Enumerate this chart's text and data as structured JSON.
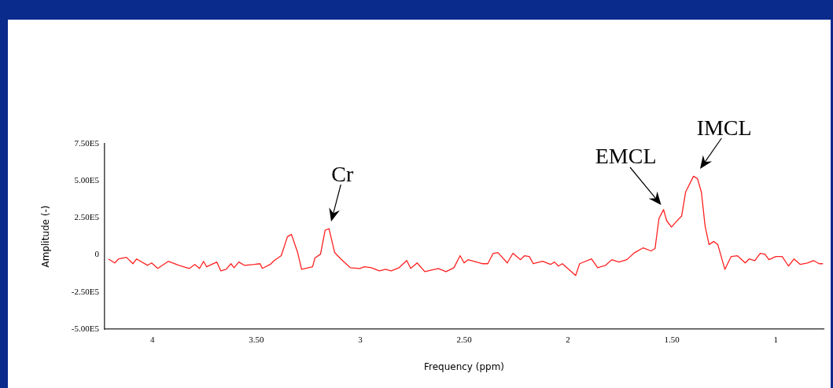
{
  "chart_data": {
    "type": "line",
    "xlabel": "Frequency (ppm)",
    "ylabel": "Amplitude (-)",
    "xlim": [
      4.23,
      0.77
    ],
    "xticks": [
      4,
      {
        "value": 3.5,
        "label": "3.50"
      },
      3,
      {
        "value": 2.5,
        "label": "2.50"
      },
      2,
      {
        "value": 1.5,
        "label": "1.50"
      },
      1
    ],
    "ylim": [
      -500000,
      750000
    ],
    "yticks": [
      {
        "value": -500000,
        "label": "-5.00E5"
      },
      {
        "value": -250000,
        "label": "-2.50E5"
      },
      0,
      {
        "value": 250000,
        "label": "2.50E5"
      },
      {
        "value": 500000,
        "label": "5.00E5"
      },
      {
        "value": 750000,
        "label": "7.50E5"
      }
    ],
    "grid": false,
    "legend": false,
    "marker": "none",
    "line_style": "solid",
    "annotations": [
      {
        "text": "Cr",
        "x": 3.15,
        "y": 177000
      },
      {
        "text": "EMCL",
        "x": 1.54,
        "y": 306000
      },
      {
        "text": "IMCL",
        "x": 1.396,
        "y": 531000
      }
    ],
    "series": [
      {
        "color": "#ff2020",
        "x": [
          4.212,
          4.181,
          4.163,
          4.125,
          4.094,
          4.076,
          4.023,
          4.004,
          3.974,
          3.924,
          3.872,
          3.822,
          3.796,
          3.773,
          3.754,
          3.739,
          3.69,
          3.671,
          3.645,
          3.622,
          3.607,
          3.584,
          3.558,
          3.509,
          3.482,
          3.471,
          3.433,
          3.414,
          3.38,
          3.35,
          3.331,
          3.301,
          3.282,
          3.229,
          3.218,
          3.191,
          3.169,
          3.15,
          3.123,
          3.093,
          3.048,
          3.002,
          2.98,
          2.946,
          2.908,
          2.878,
          2.851,
          2.813,
          2.776,
          2.757,
          2.726,
          2.689,
          2.624,
          2.587,
          2.549,
          2.519,
          2.5,
          2.481,
          2.413,
          2.386,
          2.36,
          2.337,
          2.292,
          2.265,
          2.228,
          2.209,
          2.186,
          2.167,
          2.122,
          2.084,
          2.065,
          2.046,
          2.027,
          1.963,
          1.944,
          1.887,
          1.857,
          1.819,
          1.789,
          1.755,
          1.717,
          1.679,
          1.638,
          1.6,
          1.581,
          1.562,
          1.54,
          1.525,
          1.502,
          1.479,
          1.453,
          1.434,
          1.396,
          1.377,
          1.358,
          1.34,
          1.321,
          1.298,
          1.279,
          1.245,
          1.215,
          1.185,
          1.147,
          1.128,
          1.101,
          1.075,
          1.052,
          1.033,
          1.0,
          0.969,
          0.939,
          0.912,
          0.882,
          0.848,
          0.818,
          0.791,
          0.773
        ],
        "values": [
          -27000,
          -54000,
          -27000,
          -16000,
          -59000,
          -27000,
          -70000,
          -54000,
          -91000,
          -43000,
          -70000,
          -91000,
          -64000,
          -91000,
          -43000,
          -80000,
          -48000,
          -107000,
          -97000,
          -59000,
          -86000,
          -48000,
          -70000,
          -64000,
          -59000,
          -91000,
          -64000,
          -38000,
          -5000,
          123000,
          139000,
          16000,
          -97000,
          -80000,
          -21000,
          5000,
          166000,
          177000,
          16000,
          -27000,
          -86000,
          -91000,
          -80000,
          -86000,
          -107000,
          -97000,
          -107000,
          -86000,
          -38000,
          -91000,
          -54000,
          -113000,
          -91000,
          -113000,
          -86000,
          -5000,
          -54000,
          -32000,
          -59000,
          -59000,
          11000,
          16000,
          -54000,
          11000,
          -32000,
          -5000,
          -11000,
          -59000,
          -43000,
          -64000,
          -48000,
          -75000,
          -59000,
          -139000,
          -59000,
          -27000,
          -86000,
          -70000,
          -32000,
          -48000,
          -32000,
          16000,
          48000,
          27000,
          43000,
          247000,
          306000,
          231000,
          188000,
          225000,
          263000,
          424000,
          531000,
          515000,
          424000,
          193000,
          70000,
          91000,
          70000,
          -97000,
          -11000,
          -5000,
          -54000,
          -27000,
          -38000,
          11000,
          5000,
          -32000,
          -11000,
          -11000,
          -75000,
          -27000,
          -64000,
          -54000,
          -38000,
          -59000,
          -59000
        ]
      }
    ]
  }
}
